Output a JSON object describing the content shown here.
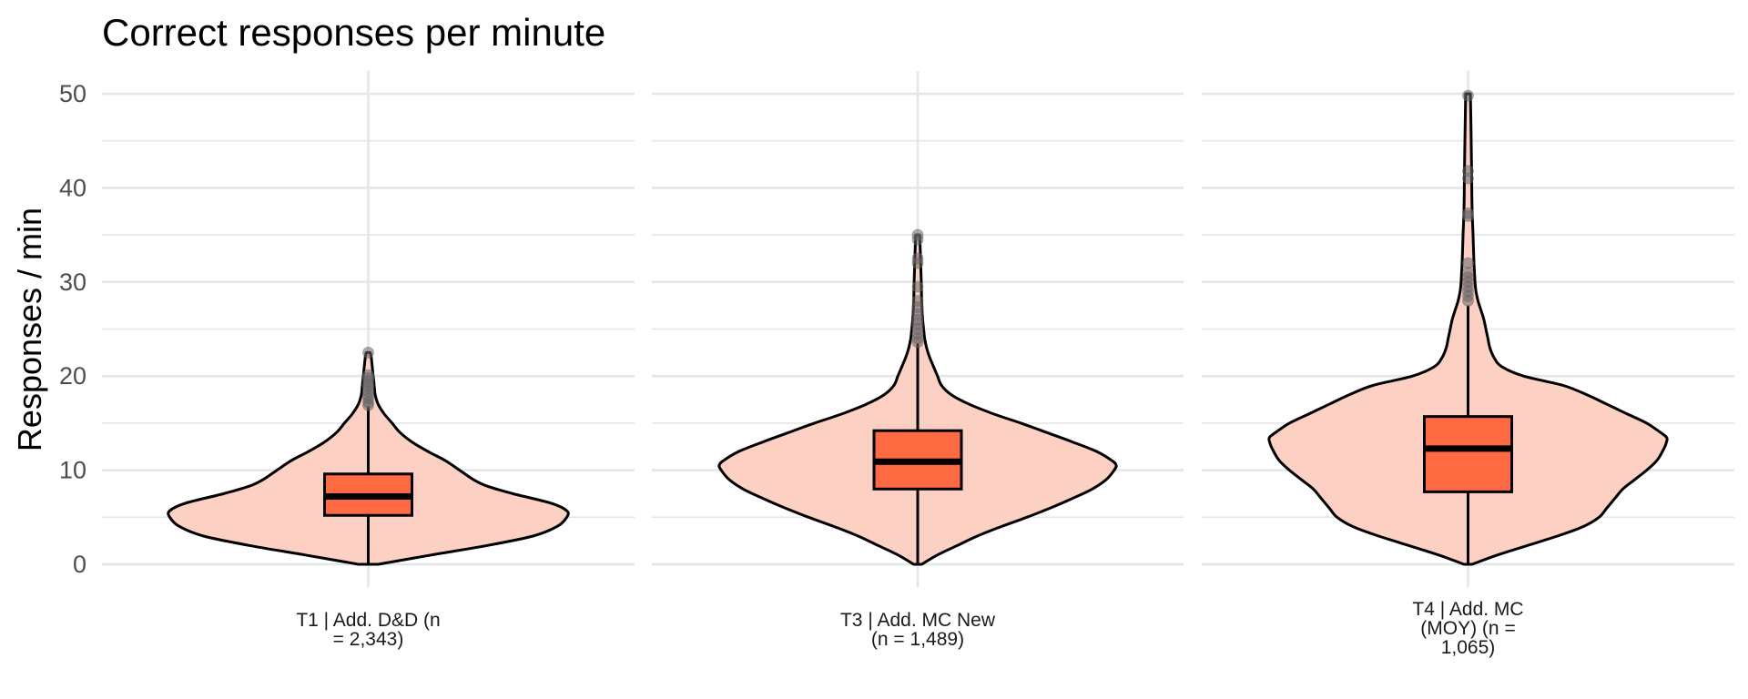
{
  "chart_data": {
    "type": "violin",
    "title": "Correct responses per minute",
    "xlabel": "",
    "ylabel": "Responses / min",
    "ylim": [
      0,
      50
    ],
    "y_ticks": [
      "0",
      "10",
      "20",
      "30",
      "40",
      "50"
    ],
    "grid": true,
    "colors": {
      "violin_fill": "#fdd0c4",
      "box_fill": "#ff6a42",
      "outline": "#000000",
      "grid": "#e6e6e6",
      "outlier": "#666666"
    },
    "panels": [
      {
        "label_lines": [
          "T1 | Add. D&D (n",
          "= 2,343)"
        ],
        "box": {
          "q1": 5.2,
          "median": 7.2,
          "q3": 9.6,
          "whisker_low": 0,
          "whisker_high": 16.8
        },
        "outliers": [
          16.9,
          17.2,
          17.6,
          18.0,
          18.4,
          18.8,
          19.1,
          19.5,
          19.8,
          20.1,
          22.5
        ],
        "density": [
          [
            0,
            0.05
          ],
          [
            1,
            0.32
          ],
          [
            2,
            0.6
          ],
          [
            3,
            0.83
          ],
          [
            4,
            0.95
          ],
          [
            5,
            1.0
          ],
          [
            5.7,
            1.0
          ],
          [
            6.5,
            0.92
          ],
          [
            7.5,
            0.73
          ],
          [
            8.3,
            0.6
          ],
          [
            9,
            0.53
          ],
          [
            10,
            0.46
          ],
          [
            11,
            0.39
          ],
          [
            12,
            0.3
          ],
          [
            13,
            0.22
          ],
          [
            14,
            0.16
          ],
          [
            15,
            0.12
          ],
          [
            16,
            0.08
          ],
          [
            17,
            0.05
          ],
          [
            18,
            0.035
          ],
          [
            19,
            0.03
          ],
          [
            20,
            0.025
          ],
          [
            21,
            0.02
          ],
          [
            22,
            0.015
          ],
          [
            22.5,
            0.01
          ]
        ]
      },
      {
        "label_lines": [
          "T3 | Add. MC New",
          "(n = 1,489)"
        ],
        "box": {
          "q1": 8.0,
          "median": 10.9,
          "q3": 14.2,
          "whisker_low": 0,
          "whisker_high": 23.5
        },
        "outliers": [
          23.6,
          24.0,
          24.5,
          25.0,
          25.5,
          26.0,
          26.6,
          27.3,
          28.0,
          29.5,
          32.0,
          32.5,
          34.5,
          35.0
        ],
        "density": [
          [
            0,
            0.02
          ],
          [
            1,
            0.1
          ],
          [
            2,
            0.2
          ],
          [
            3,
            0.3
          ],
          [
            4,
            0.42
          ],
          [
            5,
            0.55
          ],
          [
            6,
            0.67
          ],
          [
            7,
            0.78
          ],
          [
            8,
            0.88
          ],
          [
            9,
            0.95
          ],
          [
            10,
            0.99
          ],
          [
            10.5,
            1.0
          ],
          [
            11,
            0.98
          ],
          [
            12,
            0.9
          ],
          [
            13,
            0.78
          ],
          [
            14,
            0.65
          ],
          [
            15,
            0.52
          ],
          [
            16,
            0.38
          ],
          [
            17,
            0.26
          ],
          [
            18,
            0.17
          ],
          [
            19,
            0.12
          ],
          [
            20,
            0.1
          ],
          [
            21,
            0.08
          ],
          [
            22,
            0.06
          ],
          [
            23,
            0.045
          ],
          [
            24,
            0.035
          ],
          [
            25,
            0.03
          ],
          [
            26,
            0.025
          ],
          [
            28,
            0.02
          ],
          [
            30,
            0.018
          ],
          [
            32,
            0.015
          ],
          [
            34,
            0.012
          ],
          [
            35,
            0.01
          ]
        ]
      },
      {
        "label_lines": [
          "T4 | Add. MC",
          "(MOY) (n =",
          "1,065)"
        ],
        "box": {
          "q1": 7.7,
          "median": 12.3,
          "q3": 15.7,
          "whisker_low": 0,
          "whisker_high": 27.5
        },
        "outliers": [
          28.0,
          28.5,
          29.0,
          29.5,
          30.0,
          30.5,
          31.0,
          32.0,
          37.0,
          37.3,
          41.0,
          41.8,
          49.8
        ],
        "density": [
          [
            0,
            0.02
          ],
          [
            1,
            0.15
          ],
          [
            2,
            0.3
          ],
          [
            3,
            0.45
          ],
          [
            4,
            0.58
          ],
          [
            5,
            0.66
          ],
          [
            6,
            0.7
          ],
          [
            7,
            0.74
          ],
          [
            8,
            0.78
          ],
          [
            9,
            0.84
          ],
          [
            10,
            0.9
          ],
          [
            11,
            0.95
          ],
          [
            12,
            0.98
          ],
          [
            13,
            1.0
          ],
          [
            13.5,
            1.0
          ],
          [
            14,
            0.97
          ],
          [
            15,
            0.9
          ],
          [
            16,
            0.8
          ],
          [
            17,
            0.7
          ],
          [
            18,
            0.6
          ],
          [
            19,
            0.48
          ],
          [
            20,
            0.28
          ],
          [
            21,
            0.17
          ],
          [
            22,
            0.13
          ],
          [
            23,
            0.11
          ],
          [
            24,
            0.1
          ],
          [
            25,
            0.09
          ],
          [
            26,
            0.08
          ],
          [
            27,
            0.065
          ],
          [
            28,
            0.05
          ],
          [
            29,
            0.04
          ],
          [
            30,
            0.035
          ],
          [
            32,
            0.03
          ],
          [
            35,
            0.025
          ],
          [
            38,
            0.02
          ],
          [
            42,
            0.018
          ],
          [
            46,
            0.015
          ],
          [
            50,
            0.012
          ]
        ]
      }
    ]
  }
}
